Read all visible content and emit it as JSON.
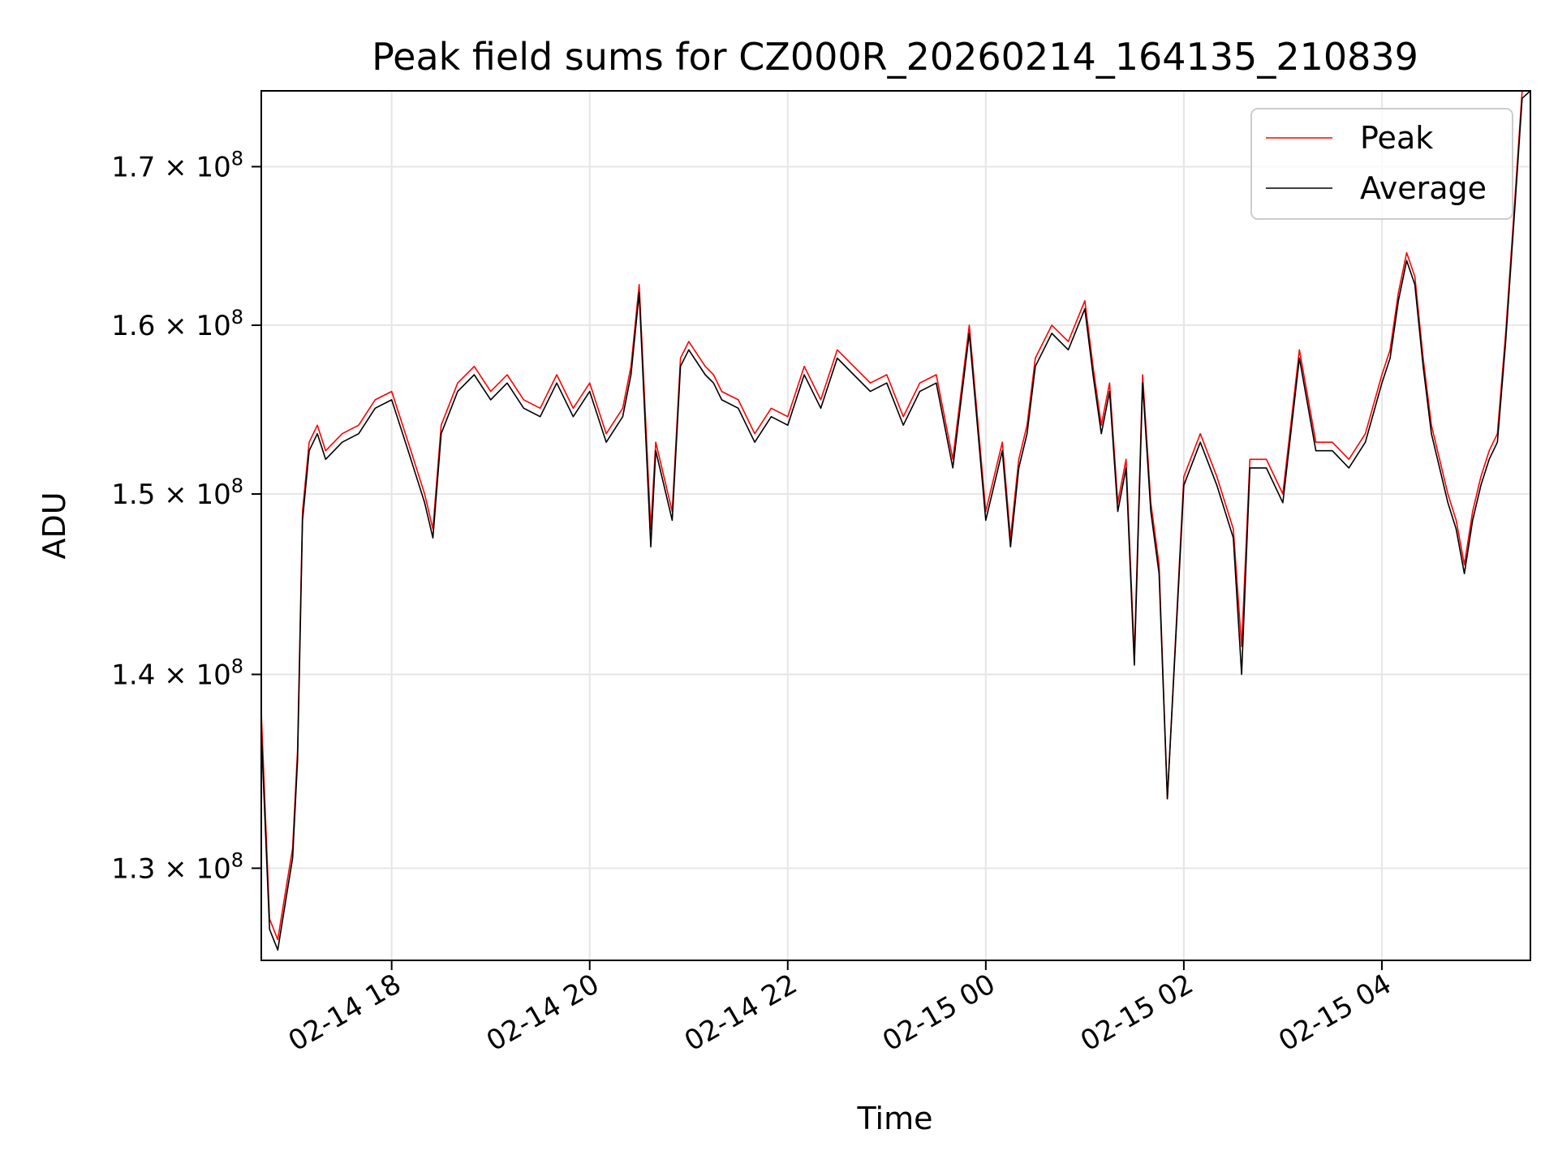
{
  "chart_data": {
    "type": "line",
    "title": "Peak field sums for CZ000R_20260214_164135_210839",
    "xlabel": "Time",
    "ylabel": "ADU",
    "y_scale": "log",
    "xlim": [
      "2026-02-14 16:41",
      "2026-02-15 05:30"
    ],
    "ylim": [
      125500000,
      175000000
    ],
    "grid": true,
    "legend_position": "top-right",
    "x_ticks": [
      {
        "value": "2026-02-14 18:00",
        "label": "02-14 18"
      },
      {
        "value": "2026-02-14 20:00",
        "label": "02-14 20"
      },
      {
        "value": "2026-02-14 22:00",
        "label": "02-14 22"
      },
      {
        "value": "2026-02-15 00:00",
        "label": "02-15 00"
      },
      {
        "value": "2026-02-15 02:00",
        "label": "02-15 02"
      },
      {
        "value": "2026-02-15 04:00",
        "label": "02-15 04"
      }
    ],
    "y_ticks": [
      {
        "value": 130000000,
        "mantissa": "1.3",
        "base": "10",
        "exp": "8"
      },
      {
        "value": 140000000,
        "mantissa": "1.4",
        "base": "10",
        "exp": "8"
      },
      {
        "value": 150000000,
        "mantissa": "1.5",
        "base": "10",
        "exp": "8"
      },
      {
        "value": 160000000,
        "mantissa": "1.6",
        "base": "10",
        "exp": "8"
      },
      {
        "value": 170000000,
        "mantissa": "1.7",
        "base": "10",
        "exp": "8"
      }
    ],
    "series": [
      {
        "name": "Peak",
        "color": "#ff0000",
        "x": [
          "2026-02-14 16:41",
          "2026-02-14 16:46",
          "2026-02-14 16:51",
          "2026-02-14 16:56",
          "2026-02-14 17:00",
          "2026-02-14 17:03",
          "2026-02-14 17:06",
          "2026-02-14 17:10",
          "2026-02-14 17:15",
          "2026-02-14 17:20",
          "2026-02-14 17:30",
          "2026-02-14 17:40",
          "2026-02-14 17:50",
          "2026-02-14 18:00",
          "2026-02-14 18:10",
          "2026-02-14 18:20",
          "2026-02-14 18:25",
          "2026-02-14 18:30",
          "2026-02-14 18:40",
          "2026-02-14 18:50",
          "2026-02-14 19:00",
          "2026-02-14 19:10",
          "2026-02-14 19:20",
          "2026-02-14 19:30",
          "2026-02-14 19:40",
          "2026-02-14 19:50",
          "2026-02-14 20:00",
          "2026-02-14 20:10",
          "2026-02-14 20:20",
          "2026-02-14 20:25",
          "2026-02-14 20:30",
          "2026-02-14 20:37",
          "2026-02-14 20:40",
          "2026-02-14 20:50",
          "2026-02-14 20:55",
          "2026-02-14 21:00",
          "2026-02-14 21:10",
          "2026-02-14 21:15",
          "2026-02-14 21:20",
          "2026-02-14 21:30",
          "2026-02-14 21:40",
          "2026-02-14 21:50",
          "2026-02-14 22:00",
          "2026-02-14 22:10",
          "2026-02-14 22:20",
          "2026-02-14 22:30",
          "2026-02-14 22:40",
          "2026-02-14 22:50",
          "2026-02-14 23:00",
          "2026-02-14 23:10",
          "2026-02-14 23:20",
          "2026-02-14 23:30",
          "2026-02-14 23:40",
          "2026-02-14 23:50",
          "2026-02-15 00:00",
          "2026-02-15 00:10",
          "2026-02-15 00:15",
          "2026-02-15 00:20",
          "2026-02-15 00:25",
          "2026-02-15 00:30",
          "2026-02-15 00:40",
          "2026-02-15 00:50",
          "2026-02-15 01:00",
          "2026-02-15 01:05",
          "2026-02-15 01:10",
          "2026-02-15 01:15",
          "2026-02-15 01:20",
          "2026-02-15 01:25",
          "2026-02-15 01:30",
          "2026-02-15 01:35",
          "2026-02-15 01:40",
          "2026-02-15 01:45",
          "2026-02-15 01:50",
          "2026-02-15 02:00",
          "2026-02-15 02:10",
          "2026-02-15 02:20",
          "2026-02-15 02:30",
          "2026-02-15 02:35",
          "2026-02-15 02:40",
          "2026-02-15 02:50",
          "2026-02-15 03:00",
          "2026-02-15 03:10",
          "2026-02-15 03:20",
          "2026-02-15 03:30",
          "2026-02-15 03:40",
          "2026-02-15 03:50",
          "2026-02-15 04:00",
          "2026-02-15 04:05",
          "2026-02-15 04:10",
          "2026-02-15 04:15",
          "2026-02-15 04:20",
          "2026-02-15 04:25",
          "2026-02-15 04:30",
          "2026-02-15 04:40",
          "2026-02-15 04:45",
          "2026-02-15 04:50",
          "2026-02-15 04:55",
          "2026-02-15 05:00",
          "2026-02-15 05:05",
          "2026-02-15 05:10",
          "2026-02-15 05:15",
          "2026-02-15 05:20",
          "2026-02-15 05:25",
          "2026-02-15 05:30"
        ],
        "values": [
          138000000,
          127500000,
          126500000,
          129000000,
          131000000,
          136000000,
          149000000,
          153000000,
          154000000,
          152500000,
          153500000,
          154000000,
          155500000,
          156000000,
          153000000,
          150000000,
          148000000,
          154000000,
          156500000,
          157500000,
          156000000,
          157000000,
          155500000,
          155000000,
          157000000,
          155000000,
          156500000,
          153500000,
          155000000,
          157500000,
          162500000,
          148000000,
          153000000,
          149000000,
          158000000,
          159000000,
          157500000,
          157000000,
          156000000,
          155500000,
          153500000,
          155000000,
          154500000,
          157500000,
          155500000,
          158500000,
          157500000,
          156500000,
          157000000,
          154500000,
          156500000,
          157000000,
          152000000,
          160000000,
          149000000,
          153000000,
          147500000,
          152000000,
          154000000,
          158000000,
          160000000,
          159000000,
          161500000,
          157500000,
          154000000,
          156500000,
          149500000,
          152000000,
          141000000,
          157000000,
          149500000,
          146000000,
          133500000,
          151000000,
          153500000,
          151000000,
          148000000,
          141500000,
          152000000,
          152000000,
          150000000,
          158500000,
          153000000,
          153000000,
          152000000,
          153500000,
          157000000,
          158500000,
          162000000,
          164500000,
          163000000,
          158000000,
          154000000,
          150000000,
          148500000,
          146000000,
          149000000,
          151000000,
          152500000,
          153500000,
          159500000,
          167000000,
          175000000,
          175000000
        ]
      },
      {
        "name": "Average",
        "color": "#000000",
        "x": [
          "2026-02-14 16:41",
          "2026-02-14 16:46",
          "2026-02-14 16:51",
          "2026-02-14 16:56",
          "2026-02-14 17:00",
          "2026-02-14 17:03",
          "2026-02-14 17:06",
          "2026-02-14 17:10",
          "2026-02-14 17:15",
          "2026-02-14 17:20",
          "2026-02-14 17:30",
          "2026-02-14 17:40",
          "2026-02-14 17:50",
          "2026-02-14 18:00",
          "2026-02-14 18:10",
          "2026-02-14 18:20",
          "2026-02-14 18:25",
          "2026-02-14 18:30",
          "2026-02-14 18:40",
          "2026-02-14 18:50",
          "2026-02-14 19:00",
          "2026-02-14 19:10",
          "2026-02-14 19:20",
          "2026-02-14 19:30",
          "2026-02-14 19:40",
          "2026-02-14 19:50",
          "2026-02-14 20:00",
          "2026-02-14 20:10",
          "2026-02-14 20:20",
          "2026-02-14 20:25",
          "2026-02-14 20:30",
          "2026-02-14 20:37",
          "2026-02-14 20:40",
          "2026-02-14 20:50",
          "2026-02-14 20:55",
          "2026-02-14 21:00",
          "2026-02-14 21:10",
          "2026-02-14 21:15",
          "2026-02-14 21:20",
          "2026-02-14 21:30",
          "2026-02-14 21:40",
          "2026-02-14 21:50",
          "2026-02-14 22:00",
          "2026-02-14 22:10",
          "2026-02-14 22:20",
          "2026-02-14 22:30",
          "2026-02-14 22:40",
          "2026-02-14 22:50",
          "2026-02-14 23:00",
          "2026-02-14 23:10",
          "2026-02-14 23:20",
          "2026-02-14 23:30",
          "2026-02-14 23:40",
          "2026-02-14 23:50",
          "2026-02-15 00:00",
          "2026-02-15 00:10",
          "2026-02-15 00:15",
          "2026-02-15 00:20",
          "2026-02-15 00:25",
          "2026-02-15 00:30",
          "2026-02-15 00:40",
          "2026-02-15 00:50",
          "2026-02-15 01:00",
          "2026-02-15 01:05",
          "2026-02-15 01:10",
          "2026-02-15 01:15",
          "2026-02-15 01:20",
          "2026-02-15 01:25",
          "2026-02-15 01:30",
          "2026-02-15 01:35",
          "2026-02-15 01:40",
          "2026-02-15 01:45",
          "2026-02-15 01:50",
          "2026-02-15 02:00",
          "2026-02-15 02:10",
          "2026-02-15 02:20",
          "2026-02-15 02:30",
          "2026-02-15 02:35",
          "2026-02-15 02:40",
          "2026-02-15 02:50",
          "2026-02-15 03:00",
          "2026-02-15 03:10",
          "2026-02-15 03:20",
          "2026-02-15 03:30",
          "2026-02-15 03:40",
          "2026-02-15 03:50",
          "2026-02-15 04:00",
          "2026-02-15 04:05",
          "2026-02-15 04:10",
          "2026-02-15 04:15",
          "2026-02-15 04:20",
          "2026-02-15 04:25",
          "2026-02-15 04:30",
          "2026-02-15 04:40",
          "2026-02-15 04:45",
          "2026-02-15 04:50",
          "2026-02-15 04:55",
          "2026-02-15 05:00",
          "2026-02-15 05:05",
          "2026-02-15 05:10",
          "2026-02-15 05:15",
          "2026-02-15 05:20",
          "2026-02-15 05:25",
          "2026-02-15 05:30"
        ],
        "values": [
          137000000,
          127000000,
          126000000,
          128500000,
          130500000,
          135500000,
          148500000,
          152500000,
          153500000,
          152000000,
          153000000,
          153500000,
          155000000,
          155500000,
          152500000,
          149500000,
          147500000,
          153500000,
          156000000,
          157000000,
          155500000,
          156500000,
          155000000,
          154500000,
          156500000,
          154500000,
          156000000,
          153000000,
          154500000,
          157000000,
          162000000,
          147000000,
          152500000,
          148500000,
          157500000,
          158500000,
          157000000,
          156500000,
          155500000,
          155000000,
          153000000,
          154500000,
          154000000,
          157000000,
          155000000,
          158000000,
          157000000,
          156000000,
          156500000,
          154000000,
          156000000,
          156500000,
          151500000,
          159500000,
          148500000,
          152500000,
          147000000,
          151500000,
          153500000,
          157500000,
          159500000,
          158500000,
          161000000,
          157000000,
          153500000,
          156000000,
          149000000,
          151500000,
          140500000,
          156500000,
          149000000,
          145500000,
          133500000,
          150500000,
          153000000,
          150500000,
          147500000,
          140000000,
          151500000,
          151500000,
          149500000,
          158000000,
          152500000,
          152500000,
          151500000,
          153000000,
          156500000,
          158000000,
          161500000,
          164000000,
          162500000,
          157500000,
          153500000,
          149500000,
          148000000,
          145500000,
          148500000,
          150500000,
          152000000,
          153000000,
          159000000,
          166500000,
          174500000,
          175000000
        ]
      }
    ]
  }
}
